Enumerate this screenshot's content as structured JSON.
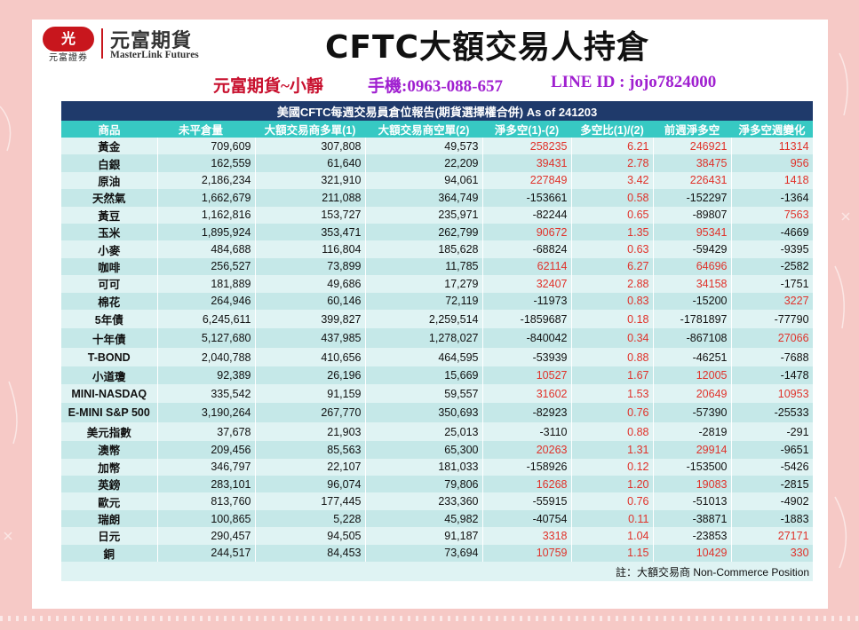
{
  "logo": {
    "mark": "光",
    "sub": "元富證券",
    "cn": "元富期貨",
    "en": "MasterLink Futures"
  },
  "title": "CFTC大額交易人持倉",
  "contact": {
    "name": "元富期貨~小靜",
    "phone": "手機:0963-088-657",
    "line": "LINE ID : jojo7824000"
  },
  "report_title": "美國CFTC每週交易員倉位報告(期貨選擇權合併) As of  241203",
  "headers": [
    "商品",
    "未平倉量",
    "大額交易商多單(1)",
    "大額交易商空單(2)",
    "淨多空(1)-(2)",
    "多空比(1)/(2)",
    "前週淨多空",
    "淨多空週變化"
  ],
  "rows": [
    {
      "name": "黃金",
      "oi": "709,609",
      "long": "307,808",
      "short": "49,573",
      "net": "258235",
      "ratio": "6.21",
      "prev": "246921",
      "chg": "11314"
    },
    {
      "name": "白銀",
      "oi": "162,559",
      "long": "61,640",
      "short": "22,209",
      "net": "39431",
      "ratio": "2.78",
      "prev": "38475",
      "chg": "956"
    },
    {
      "name": "原油",
      "oi": "2,186,234",
      "long": "321,910",
      "short": "94,061",
      "net": "227849",
      "ratio": "3.42",
      "prev": "226431",
      "chg": "1418"
    },
    {
      "name": "天然氣",
      "oi": "1,662,679",
      "long": "211,088",
      "short": "364,749",
      "net": "-153661",
      "ratio": "0.58",
      "prev": "-152297",
      "chg": "-1364"
    },
    {
      "name": "黃豆",
      "oi": "1,162,816",
      "long": "153,727",
      "short": "235,971",
      "net": "-82244",
      "ratio": "0.65",
      "prev": "-89807",
      "chg": "7563"
    },
    {
      "name": "玉米",
      "oi": "1,895,924",
      "long": "353,471",
      "short": "262,799",
      "net": "90672",
      "ratio": "1.35",
      "prev": "95341",
      "chg": "-4669"
    },
    {
      "name": "小麥",
      "oi": "484,688",
      "long": "116,804",
      "short": "185,628",
      "net": "-68824",
      "ratio": "0.63",
      "prev": "-59429",
      "chg": "-9395"
    },
    {
      "name": "咖啡",
      "oi": "256,527",
      "long": "73,899",
      "short": "11,785",
      "net": "62114",
      "ratio": "6.27",
      "prev": "64696",
      "chg": "-2582"
    },
    {
      "name": "可可",
      "oi": "181,889",
      "long": "49,686",
      "short": "17,279",
      "net": "32407",
      "ratio": "2.88",
      "prev": "34158",
      "chg": "-1751"
    },
    {
      "name": "棉花",
      "oi": "264,946",
      "long": "60,146",
      "short": "72,119",
      "net": "-11973",
      "ratio": "0.83",
      "prev": "-15200",
      "chg": "3227"
    },
    {
      "name": "5年債",
      "oi": "6,245,611",
      "long": "399,827",
      "short": "2,259,514",
      "net": "-1859687",
      "ratio": "0.18",
      "prev": "-1781897",
      "chg": "-77790"
    },
    {
      "name": "十年債",
      "oi": "5,127,680",
      "long": "437,985",
      "short": "1,278,027",
      "net": "-840042",
      "ratio": "0.34",
      "prev": "-867108",
      "chg": "27066"
    },
    {
      "name": "T-BOND",
      "oi": "2,040,788",
      "long": "410,656",
      "short": "464,595",
      "net": "-53939",
      "ratio": "0.88",
      "prev": "-46251",
      "chg": "-7688"
    },
    {
      "name": "小道瓊",
      "oi": "92,389",
      "long": "26,196",
      "short": "15,669",
      "net": "10527",
      "ratio": "1.67",
      "prev": "12005",
      "chg": "-1478"
    },
    {
      "name": "MINI-NASDAQ",
      "oi": "335,542",
      "long": "91,159",
      "short": "59,557",
      "net": "31602",
      "ratio": "1.53",
      "prev": "20649",
      "chg": "10953"
    },
    {
      "name": "E-MINI S&P 500",
      "oi": "3,190,264",
      "long": "267,770",
      "short": "350,693",
      "net": "-82923",
      "ratio": "0.76",
      "prev": "-57390",
      "chg": "-25533"
    },
    {
      "name": "美元指數",
      "oi": "37,678",
      "long": "21,903",
      "short": "25,013",
      "net": "-3110",
      "ratio": "0.88",
      "prev": "-2819",
      "chg": "-291"
    },
    {
      "name": "澳幣",
      "oi": "209,456",
      "long": "85,563",
      "short": "65,300",
      "net": "20263",
      "ratio": "1.31",
      "prev": "29914",
      "chg": "-9651"
    },
    {
      "name": "加幣",
      "oi": "346,797",
      "long": "22,107",
      "short": "181,033",
      "net": "-158926",
      "ratio": "0.12",
      "prev": "-153500",
      "chg": "-5426"
    },
    {
      "name": "英鎊",
      "oi": "283,101",
      "long": "96,074",
      "short": "79,806",
      "net": "16268",
      "ratio": "1.20",
      "prev": "19083",
      "chg": "-2815"
    },
    {
      "name": "歐元",
      "oi": "813,760",
      "long": "177,445",
      "short": "233,360",
      "net": "-55915",
      "ratio": "0.76",
      "prev": "-51013",
      "chg": "-4902"
    },
    {
      "name": "瑞朗",
      "oi": "100,865",
      "long": "5,228",
      "short": "45,982",
      "net": "-40754",
      "ratio": "0.11",
      "prev": "-38871",
      "chg": "-1883"
    },
    {
      "name": "日元",
      "oi": "290,457",
      "long": "94,505",
      "short": "91,187",
      "net": "3318",
      "ratio": "1.04",
      "prev": "-23853",
      "chg": "27171"
    },
    {
      "name": "銅",
      "oi": "244,517",
      "long": "84,453",
      "short": "73,694",
      "net": "10759",
      "ratio": "1.15",
      "prev": "10429",
      "chg": "330"
    }
  ],
  "note": "註：大額交易商 Non-Commerce Position",
  "colors": {
    "header_bg": "#1f3a6b",
    "col_header_bg": "#37c9c3",
    "positive": "#e0322a",
    "negative": "#111111"
  }
}
